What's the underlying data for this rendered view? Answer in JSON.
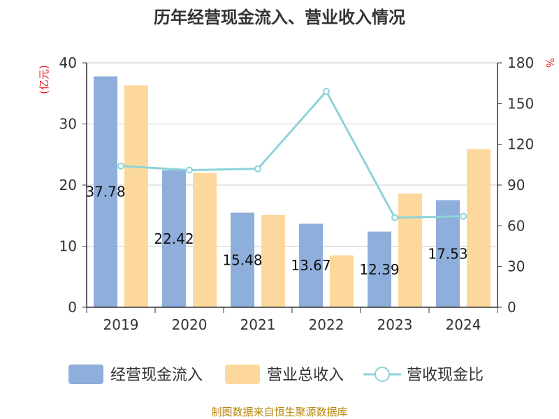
{
  "chart_data": {
    "type": "bar",
    "title": "历年经营现金流入、营业收入情况",
    "categories": [
      "2019",
      "2020",
      "2021",
      "2022",
      "2023",
      "2024"
    ],
    "series": [
      {
        "name": "经营现金流入",
        "type": "bar",
        "axis": "left",
        "color": "#8eaedb",
        "values": [
          37.78,
          22.42,
          15.48,
          13.67,
          12.39,
          17.53
        ],
        "labels": [
          "37.78",
          "22.42",
          "15.48",
          "13.67",
          "12.39",
          "17.53"
        ]
      },
      {
        "name": "营业总收入",
        "type": "bar",
        "axis": "left",
        "color": "#fdd89c",
        "values": [
          36.3,
          22.0,
          15.1,
          8.5,
          18.6,
          25.9
        ]
      },
      {
        "name": "营收现金比",
        "type": "line",
        "axis": "right",
        "color": "#8dd3d9",
        "values": [
          104,
          101,
          102,
          159,
          66,
          67
        ]
      }
    ],
    "y_left": {
      "unit": "(亿元)",
      "min": 0,
      "max": 40,
      "ticks": [
        0,
        10,
        20,
        30,
        40
      ]
    },
    "y_right": {
      "unit": "%",
      "min": 0,
      "max": 180,
      "ticks": [
        0,
        30,
        60,
        90,
        120,
        150,
        180
      ]
    },
    "grid": true,
    "legend_position": "bottom",
    "source": "制图数据来自恒生聚源数据库"
  }
}
